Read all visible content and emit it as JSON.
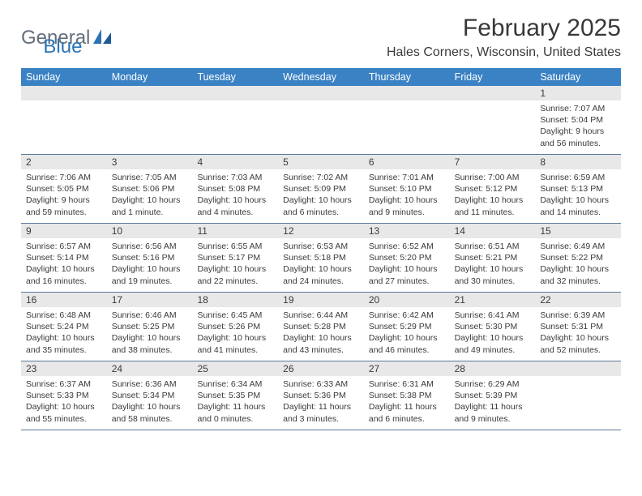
{
  "brand": {
    "general": "General",
    "blue": "Blue"
  },
  "title": "February 2025",
  "location": "Hales Corners, Wisconsin, United States",
  "colors": {
    "headerBar": "#3a82c4",
    "headerText": "#ffffff",
    "dayNumBar": "#e8e8e8",
    "rowBorder": "#5b7a9a",
    "logoGray": "#646f7a",
    "logoBlue": "#2b73b7"
  },
  "dayNames": [
    "Sunday",
    "Monday",
    "Tuesday",
    "Wednesday",
    "Thursday",
    "Friday",
    "Saturday"
  ],
  "weeks": [
    [
      null,
      null,
      null,
      null,
      null,
      null,
      {
        "n": "1",
        "sunrise": "7:07 AM",
        "sunset": "5:04 PM",
        "daylight": "9 hours and 56 minutes."
      }
    ],
    [
      {
        "n": "2",
        "sunrise": "7:06 AM",
        "sunset": "5:05 PM",
        "daylight": "9 hours and 59 minutes."
      },
      {
        "n": "3",
        "sunrise": "7:05 AM",
        "sunset": "5:06 PM",
        "daylight": "10 hours and 1 minute."
      },
      {
        "n": "4",
        "sunrise": "7:03 AM",
        "sunset": "5:08 PM",
        "daylight": "10 hours and 4 minutes."
      },
      {
        "n": "5",
        "sunrise": "7:02 AM",
        "sunset": "5:09 PM",
        "daylight": "10 hours and 6 minutes."
      },
      {
        "n": "6",
        "sunrise": "7:01 AM",
        "sunset": "5:10 PM",
        "daylight": "10 hours and 9 minutes."
      },
      {
        "n": "7",
        "sunrise": "7:00 AM",
        "sunset": "5:12 PM",
        "daylight": "10 hours and 11 minutes."
      },
      {
        "n": "8",
        "sunrise": "6:59 AM",
        "sunset": "5:13 PM",
        "daylight": "10 hours and 14 minutes."
      }
    ],
    [
      {
        "n": "9",
        "sunrise": "6:57 AM",
        "sunset": "5:14 PM",
        "daylight": "10 hours and 16 minutes."
      },
      {
        "n": "10",
        "sunrise": "6:56 AM",
        "sunset": "5:16 PM",
        "daylight": "10 hours and 19 minutes."
      },
      {
        "n": "11",
        "sunrise": "6:55 AM",
        "sunset": "5:17 PM",
        "daylight": "10 hours and 22 minutes."
      },
      {
        "n": "12",
        "sunrise": "6:53 AM",
        "sunset": "5:18 PM",
        "daylight": "10 hours and 24 minutes."
      },
      {
        "n": "13",
        "sunrise": "6:52 AM",
        "sunset": "5:20 PM",
        "daylight": "10 hours and 27 minutes."
      },
      {
        "n": "14",
        "sunrise": "6:51 AM",
        "sunset": "5:21 PM",
        "daylight": "10 hours and 30 minutes."
      },
      {
        "n": "15",
        "sunrise": "6:49 AM",
        "sunset": "5:22 PM",
        "daylight": "10 hours and 32 minutes."
      }
    ],
    [
      {
        "n": "16",
        "sunrise": "6:48 AM",
        "sunset": "5:24 PM",
        "daylight": "10 hours and 35 minutes."
      },
      {
        "n": "17",
        "sunrise": "6:46 AM",
        "sunset": "5:25 PM",
        "daylight": "10 hours and 38 minutes."
      },
      {
        "n": "18",
        "sunrise": "6:45 AM",
        "sunset": "5:26 PM",
        "daylight": "10 hours and 41 minutes."
      },
      {
        "n": "19",
        "sunrise": "6:44 AM",
        "sunset": "5:28 PM",
        "daylight": "10 hours and 43 minutes."
      },
      {
        "n": "20",
        "sunrise": "6:42 AM",
        "sunset": "5:29 PM",
        "daylight": "10 hours and 46 minutes."
      },
      {
        "n": "21",
        "sunrise": "6:41 AM",
        "sunset": "5:30 PM",
        "daylight": "10 hours and 49 minutes."
      },
      {
        "n": "22",
        "sunrise": "6:39 AM",
        "sunset": "5:31 PM",
        "daylight": "10 hours and 52 minutes."
      }
    ],
    [
      {
        "n": "23",
        "sunrise": "6:37 AM",
        "sunset": "5:33 PM",
        "daylight": "10 hours and 55 minutes."
      },
      {
        "n": "24",
        "sunrise": "6:36 AM",
        "sunset": "5:34 PM",
        "daylight": "10 hours and 58 minutes."
      },
      {
        "n": "25",
        "sunrise": "6:34 AM",
        "sunset": "5:35 PM",
        "daylight": "11 hours and 0 minutes."
      },
      {
        "n": "26",
        "sunrise": "6:33 AM",
        "sunset": "5:36 PM",
        "daylight": "11 hours and 3 minutes."
      },
      {
        "n": "27",
        "sunrise": "6:31 AM",
        "sunset": "5:38 PM",
        "daylight": "11 hours and 6 minutes."
      },
      {
        "n": "28",
        "sunrise": "6:29 AM",
        "sunset": "5:39 PM",
        "daylight": "11 hours and 9 minutes."
      },
      null
    ]
  ],
  "labels": {
    "sunrise": "Sunrise: ",
    "sunset": "Sunset: ",
    "daylight": "Daylight: "
  }
}
